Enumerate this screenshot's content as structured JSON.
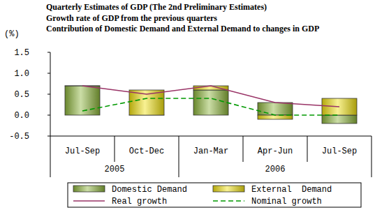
{
  "chart_data": {
    "type": "bar",
    "title": "Quarterly Estimates of GDP (The 2nd Preliminary Estimates)",
    "subtitles": [
      "Growth rate of GDP from the previous quarters",
      "Contribution of Domestic Demand and External Demand to changes in GDP"
    ],
    "y_label": "(%)",
    "categories": [
      "Jul-Sep",
      "Oct-Dec",
      "Jan-Mar",
      "Apr-Jun",
      "Jul-Sep"
    ],
    "groups": [
      {
        "label": "2005",
        "size": 2
      },
      {
        "label": "2006",
        "size": 3
      }
    ],
    "ylim": [
      -0.5,
      1.5
    ],
    "yticks": [
      -0.5,
      {
        "value": 0,
        "label": "0.0"
      },
      0.5,
      {
        "value": 1,
        "label": "1.0"
      },
      1.5
    ],
    "grid": false,
    "stacked": true,
    "legend": "bottom",
    "series": [
      {
        "name": "Domestic Demand",
        "type": "bar",
        "color": "#8cb43a",
        "values": [
          0.7,
          0.0,
          0.6,
          0.3,
          -0.2
        ]
      },
      {
        "name": "External  Demand",
        "type": "bar",
        "color": "#f0e010",
        "values": [
          0.0,
          0.6,
          0.1,
          -0.1,
          0.4
        ]
      },
      {
        "name": "Real growth",
        "type": "line",
        "color": "#993366",
        "line_style": "solid",
        "values": [
          0.7,
          0.5,
          0.7,
          0.3,
          0.2
        ]
      },
      {
        "name": "Nominal growth",
        "type": "line",
        "color": "#009900",
        "line_style": "dashed",
        "values": [
          0.1,
          0.4,
          0.4,
          0.0,
          0.0
        ]
      }
    ]
  }
}
